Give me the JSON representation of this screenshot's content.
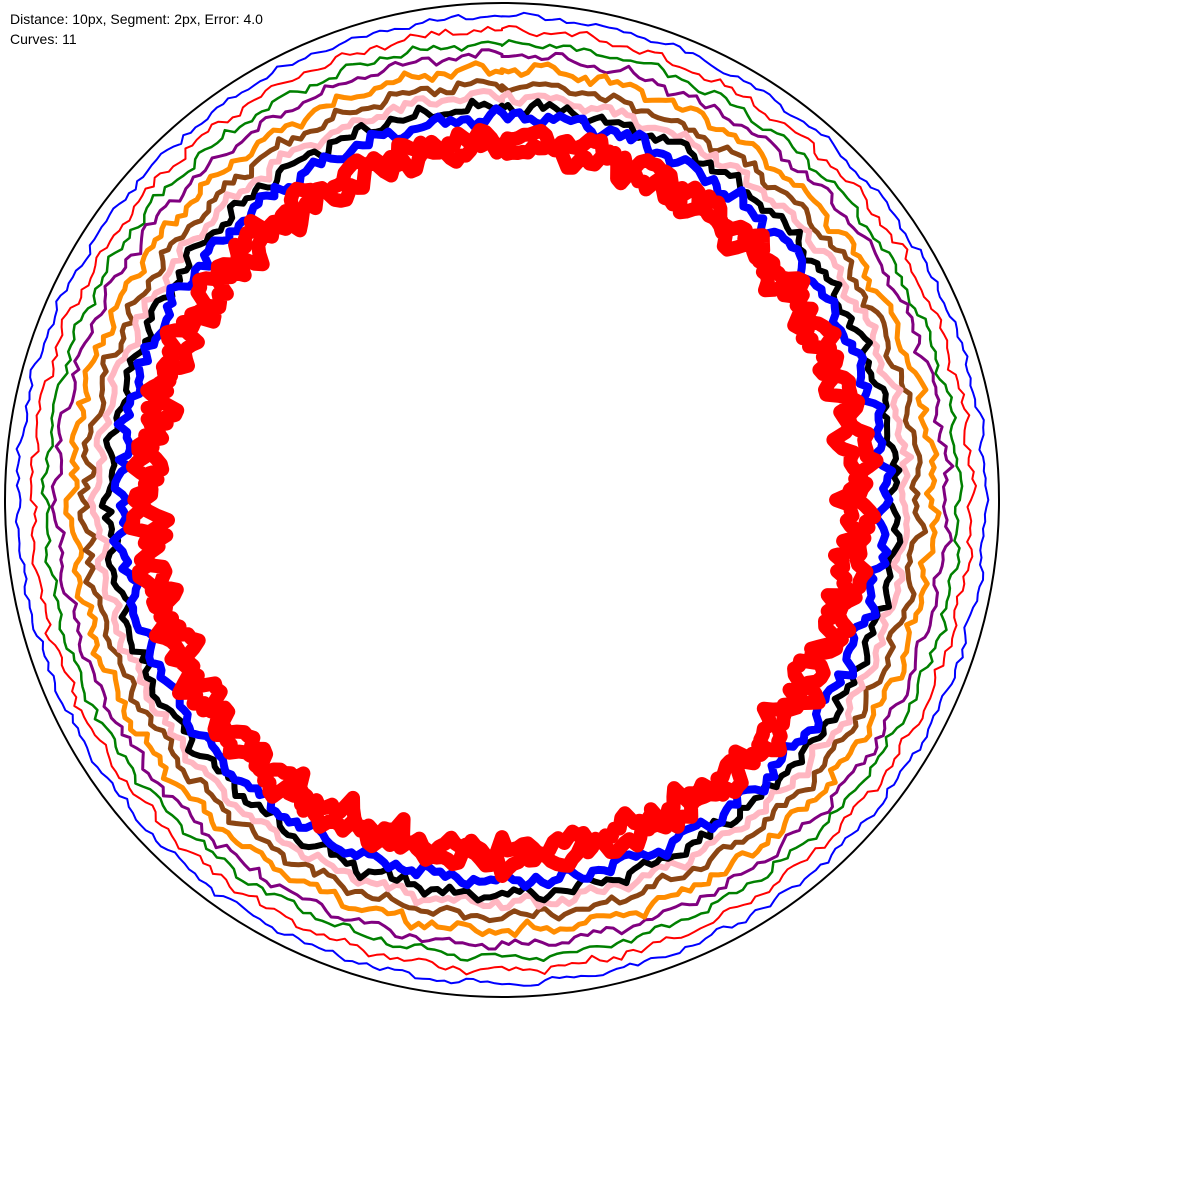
{
  "info": {
    "line1": "Distance: 10px, Segment: 2px, Error: 4.0",
    "line2": "Curves: 11"
  },
  "boundary": {
    "color": "#000000"
  },
  "curves": [
    {
      "color": "#0000ff"
    },
    {
      "color": "#ff0000"
    },
    {
      "color": "#008000"
    },
    {
      "color": "#800080"
    },
    {
      "color": "#ff8c00"
    },
    {
      "color": "#8b4513"
    },
    {
      "color": "#ffb6c1"
    },
    {
      "color": "#000000"
    },
    {
      "color": "#0000ff"
    },
    {
      "color": "#ff0000"
    },
    {
      "color": "#ff0000"
    }
  ]
}
